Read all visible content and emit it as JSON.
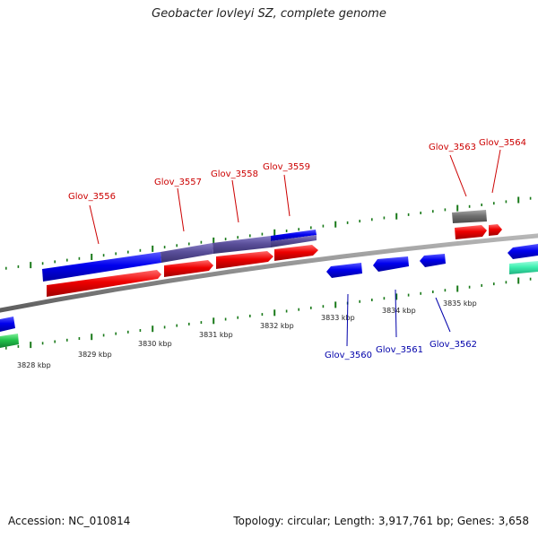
{
  "title": "Geobacter lovleyi SZ, complete genome",
  "footer": {
    "accession": "Accession: NC_010814",
    "summary": "Topology: circular; Length: 3,917,761 bp; Genes: 3,658"
  },
  "colors": {
    "background": "#ffffff",
    "backbone": "#8c8c8c",
    "ticks": "#1a7a1a",
    "forward_gene": "#0000ee",
    "reverse_gene": "#ee0000",
    "mixed_gene": "#5a4f9a",
    "pseudo_gene": "#707070",
    "rna_gene": "#22c24a",
    "misc_feature": "#3ff0b0",
    "label_forward": "#cc0000",
    "label_reverse": "#0000aa"
  },
  "scale": {
    "tick_labels": [
      "3828 kbp",
      "3829 kbp",
      "3830 kbp",
      "3831 kbp",
      "3832 kbp",
      "3833 kbp",
      "3834 kbp",
      "3835 kbp"
    ]
  },
  "gene_labels": {
    "top": [
      "Glov_3556",
      "Glov_3557",
      "Glov_3558",
      "Glov_3559",
      "Glov_3563",
      "Glov_3564"
    ],
    "bottom": [
      "Glov_3560",
      "Glov_3561",
      "Glov_3562"
    ]
  }
}
